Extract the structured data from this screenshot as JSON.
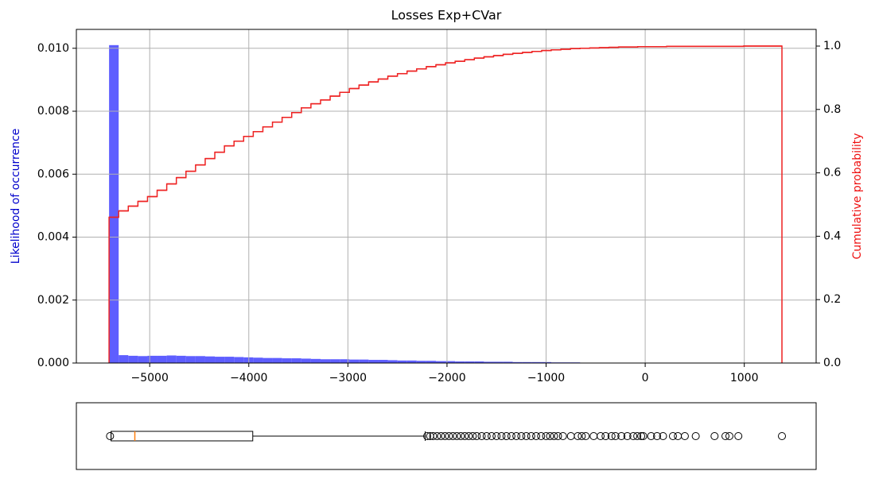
{
  "chart_data": [
    {
      "type": "histogram",
      "title": "Losses Exp+CVar",
      "ylabel": "Likelihood of occurrence",
      "y2label": "Cumulative probability",
      "bins": [
        -5410,
        -5313,
        -5216,
        -5119,
        -5022,
        -4925,
        -4828,
        -4731,
        -4634,
        -4537,
        -4440,
        -4343,
        -4246,
        -4149,
        -4052,
        -3955,
        -3858,
        -3761,
        -3664,
        -3567,
        -3470,
        -3373,
        -3276,
        -3179,
        -3082,
        -2985,
        -2888,
        -2791,
        -2694,
        -2597,
        -2500,
        -2403,
        -2306,
        -2209,
        -2112,
        -2015,
        -1918,
        -1821,
        -1724,
        -1627,
        -1530,
        -1433,
        -1336,
        -1239,
        -1142,
        -1045,
        -948,
        -851,
        -754,
        -657,
        -560,
        -463,
        -366,
        -269,
        -172,
        -75,
        22,
        119,
        216,
        313,
        410,
        507,
        604,
        701,
        798,
        895,
        992,
        1089,
        1186,
        1283,
        1380
      ],
      "series": [
        {
          "color": "#5555ff",
          "values": [
            0.0101,
            0.00025,
            0.00023,
            0.00022,
            0.00023,
            0.00023,
            0.00024,
            0.00023,
            0.00022,
            0.00022,
            0.00021,
            0.0002,
            0.0002,
            0.00019,
            0.00018,
            0.00017,
            0.00016,
            0.00016,
            0.00015,
            0.00015,
            0.00014,
            0.00013,
            0.00012,
            0.00012,
            0.00012,
            0.00011,
            0.00011,
            0.0001,
            0.0001,
            9e-05,
            8e-05,
            8e-05,
            7e-05,
            7e-05,
            6e-05,
            6e-05,
            5e-05,
            5e-05,
            5e-05,
            4e-05,
            4e-05,
            4e-05,
            3e-05,
            3e-05,
            3e-05,
            3e-05,
            2e-05,
            2e-05,
            2e-05,
            1e-05,
            1e-05,
            1e-05,
            1e-05,
            1e-05,
            1e-05,
            1e-05,
            1e-05,
            1e-05,
            5e-06,
            5e-06,
            5e-06,
            5e-06,
            5e-06,
            5e-06,
            5e-06,
            5e-06,
            5e-06,
            5e-06,
            5e-06,
            5e-06
          ]
        },
        {
          "color": "#ee2222",
          "axis": "y2",
          "values": [
            0.46,
            0.48,
            0.495,
            0.51,
            0.525,
            0.545,
            0.565,
            0.585,
            0.605,
            0.625,
            0.645,
            0.665,
            0.685,
            0.7,
            0.715,
            0.73,
            0.745,
            0.76,
            0.775,
            0.79,
            0.805,
            0.818,
            0.83,
            0.842,
            0.854,
            0.866,
            0.877,
            0.887,
            0.896,
            0.905,
            0.913,
            0.921,
            0.928,
            0.935,
            0.941,
            0.947,
            0.952,
            0.957,
            0.962,
            0.966,
            0.97,
            0.974,
            0.977,
            0.98,
            0.983,
            0.986,
            0.988,
            0.99,
            0.992,
            0.993,
            0.994,
            0.995,
            0.996,
            0.997,
            0.997,
            0.998,
            0.998,
            0.998,
            0.999,
            0.999,
            0.999,
            0.999,
            0.999,
            0.999,
            0.999,
            0.999,
            1.0,
            1.0,
            1.0,
            1.0
          ]
        }
      ],
      "xlim": [
        -5740,
        1725
      ],
      "xticks": [
        {
          "value": -5000,
          "label": "−5000"
        },
        {
          "value": -4000,
          "label": "−4000"
        },
        {
          "value": -3000,
          "label": "−3000"
        },
        {
          "value": -2000,
          "label": "−2000"
        },
        {
          "value": -1000,
          "label": "−1000"
        },
        0,
        1000
      ],
      "ylim": [
        0,
        0.0106
      ],
      "yticks": [
        {
          "value": 0,
          "label": "0.000"
        },
        {
          "value": 0.002,
          "label": "0.002"
        },
        {
          "value": 0.004,
          "label": "0.004"
        },
        {
          "value": 0.006,
          "label": "0.006"
        },
        {
          "value": 0.008,
          "label": "0.008"
        },
        {
          "value": 0.01,
          "label": "0.010"
        }
      ],
      "y2lim": [
        0,
        1.0526
      ],
      "y2ticks": [
        {
          "value": 0,
          "label": "0.0"
        },
        {
          "value": 0.2,
          "label": "0.2"
        },
        {
          "value": 0.4,
          "label": "0.4"
        },
        {
          "value": 0.6,
          "label": "0.6"
        },
        {
          "value": 0.8,
          "label": "0.8"
        },
        {
          "value": 1,
          "label": "1.0"
        }
      ],
      "grid": true
    },
    {
      "type": "box",
      "xlim": [
        -5740,
        1725
      ],
      "whislo": -5390,
      "q1": -5390,
      "median": -5150,
      "q3": -3960,
      "whishi": -2220,
      "median_color": "#ff7f0e",
      "fliers": [
        -5400,
        -2200,
        -2170,
        -2140,
        -2100,
        -2060,
        -2020,
        -1980,
        -1940,
        -1900,
        -1860,
        -1820,
        -1780,
        -1740,
        -1700,
        -1650,
        -1600,
        -1550,
        -1500,
        -1450,
        -1400,
        -1350,
        -1300,
        -1250,
        -1200,
        -1150,
        -1100,
        -1050,
        -1000,
        -960,
        -920,
        -880,
        -830,
        -750,
        -680,
        -640,
        -600,
        -520,
        -450,
        -400,
        -340,
        -300,
        -240,
        -180,
        -120,
        -80,
        -40,
        -20,
        60,
        120,
        180,
        280,
        330,
        400,
        510,
        700,
        810,
        850,
        940,
        1380
      ]
    }
  ]
}
